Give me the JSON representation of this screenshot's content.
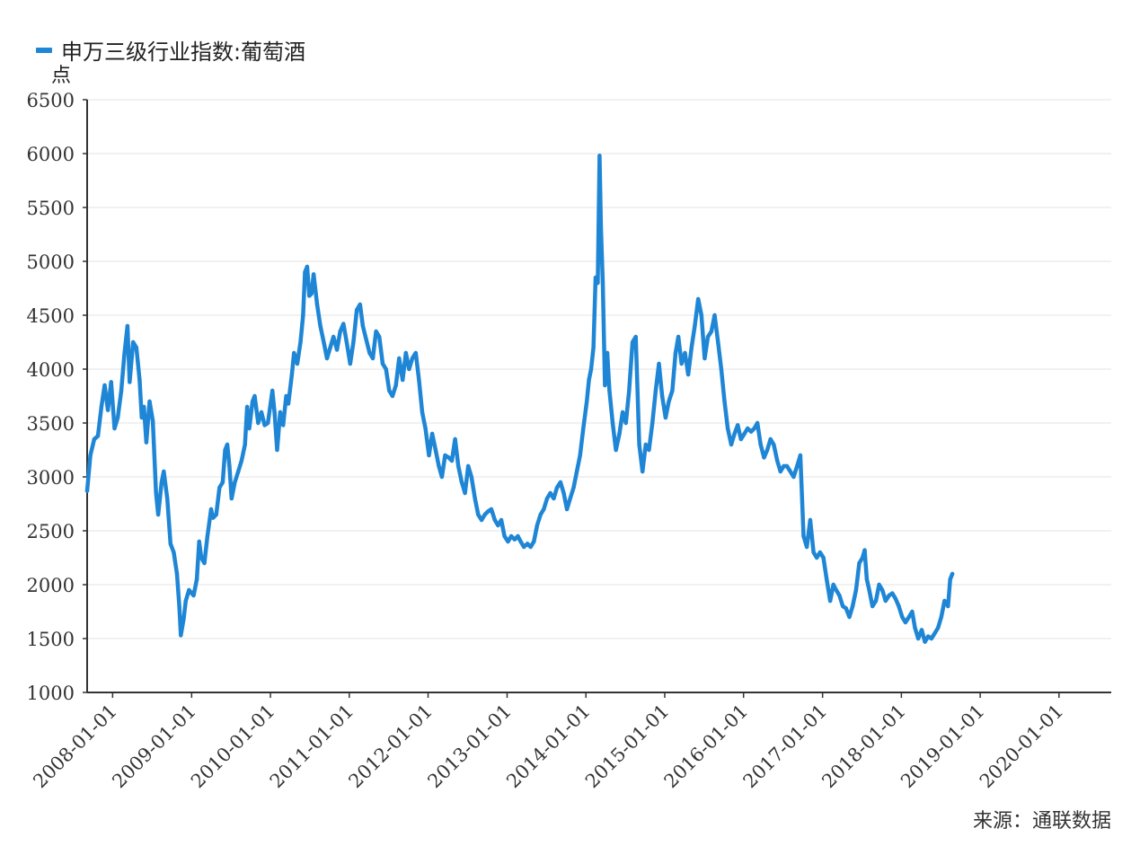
{
  "legend": {
    "series_name": "申万三级行业指数:葡萄酒",
    "color": "#1f86d6"
  },
  "unit": "点",
  "source": "来源：通联数据",
  "chart_data": {
    "type": "line",
    "ylim": [
      1000,
      6500
    ],
    "yticks": [
      1000,
      1500,
      2000,
      2500,
      3000,
      3500,
      4000,
      4500,
      5000,
      5500,
      6000,
      6500
    ],
    "xticks": [
      "2008-01-01",
      "2009-01-01",
      "2010-01-01",
      "2011-01-01",
      "2012-01-01",
      "2013-01-01",
      "2014-01-01",
      "2015-01-01",
      "2016-01-01",
      "2017-01-01",
      "2018-01-01",
      "2019-01-01",
      "2020-01-01"
    ],
    "x_range": [
      "2007-09-05",
      "2020-08-30"
    ],
    "grid": true,
    "legend_position": "top-left",
    "series": [
      {
        "name": "申万三级行业指数:葡萄酒",
        "color": "#1f86d6",
        "points": [
          [
            "2007-09-05",
            2870
          ],
          [
            "2007-09-20",
            3200
          ],
          [
            "2007-10-08",
            3350
          ],
          [
            "2007-10-25",
            3380
          ],
          [
            "2007-11-10",
            3650
          ],
          [
            "2007-11-25",
            3850
          ],
          [
            "2007-12-10",
            3620
          ],
          [
            "2007-12-25",
            3880
          ],
          [
            "2008-01-10",
            3450
          ],
          [
            "2008-01-25",
            3550
          ],
          [
            "2008-02-10",
            3800
          ],
          [
            "2008-02-25",
            4150
          ],
          [
            "2008-03-10",
            4400
          ],
          [
            "2008-03-20",
            3880
          ],
          [
            "2008-04-05",
            4250
          ],
          [
            "2008-04-20",
            4200
          ],
          [
            "2008-05-05",
            3900
          ],
          [
            "2008-05-15",
            3550
          ],
          [
            "2008-05-25",
            3650
          ],
          [
            "2008-06-05",
            3320
          ],
          [
            "2008-06-20",
            3700
          ],
          [
            "2008-07-05",
            3520
          ],
          [
            "2008-07-20",
            2850
          ],
          [
            "2008-07-30",
            2650
          ],
          [
            "2008-08-15",
            2950
          ],
          [
            "2008-08-25",
            3050
          ],
          [
            "2008-09-10",
            2800
          ],
          [
            "2008-09-25",
            2380
          ],
          [
            "2008-10-10",
            2300
          ],
          [
            "2008-10-25",
            2100
          ],
          [
            "2008-11-05",
            1800
          ],
          [
            "2008-11-12",
            1530
          ],
          [
            "2008-11-25",
            1680
          ],
          [
            "2008-12-05",
            1850
          ],
          [
            "2008-12-20",
            1950
          ],
          [
            "2009-01-10",
            1900
          ],
          [
            "2009-01-25",
            2050
          ],
          [
            "2009-02-05",
            2400
          ],
          [
            "2009-02-15",
            2250
          ],
          [
            "2009-03-01",
            2200
          ],
          [
            "2009-03-15",
            2450
          ],
          [
            "2009-04-01",
            2700
          ],
          [
            "2009-04-10",
            2620
          ],
          [
            "2009-04-25",
            2650
          ],
          [
            "2009-05-10",
            2900
          ],
          [
            "2009-05-25",
            2950
          ],
          [
            "2009-06-05",
            3250
          ],
          [
            "2009-06-15",
            3300
          ],
          [
            "2009-06-25",
            3100
          ],
          [
            "2009-07-05",
            2800
          ],
          [
            "2009-07-20",
            2950
          ],
          [
            "2009-08-05",
            3050
          ],
          [
            "2009-08-20",
            3150
          ],
          [
            "2009-09-05",
            3300
          ],
          [
            "2009-09-15",
            3650
          ],
          [
            "2009-09-25",
            3450
          ],
          [
            "2009-10-10",
            3700
          ],
          [
            "2009-10-20",
            3750
          ],
          [
            "2009-11-05",
            3500
          ],
          [
            "2009-11-20",
            3600
          ],
          [
            "2009-12-05",
            3480
          ],
          [
            "2009-12-20",
            3500
          ],
          [
            "2010-01-10",
            3800
          ],
          [
            "2010-01-20",
            3600
          ],
          [
            "2010-02-01",
            3250
          ],
          [
            "2010-02-15",
            3600
          ],
          [
            "2010-03-01",
            3480
          ],
          [
            "2010-03-15",
            3750
          ],
          [
            "2010-03-25",
            3680
          ],
          [
            "2010-04-10",
            3950
          ],
          [
            "2010-04-20",
            4150
          ],
          [
            "2010-05-05",
            4050
          ],
          [
            "2010-05-20",
            4250
          ],
          [
            "2010-06-01",
            4500
          ],
          [
            "2010-06-10",
            4900
          ],
          [
            "2010-06-20",
            4950
          ],
          [
            "2010-06-30",
            4680
          ],
          [
            "2010-07-10",
            4700
          ],
          [
            "2010-07-20",
            4880
          ],
          [
            "2010-08-05",
            4600
          ],
          [
            "2010-08-20",
            4400
          ],
          [
            "2010-09-05",
            4250
          ],
          [
            "2010-09-20",
            4100
          ],
          [
            "2010-10-05",
            4200
          ],
          [
            "2010-10-20",
            4300
          ],
          [
            "2010-11-05",
            4180
          ],
          [
            "2010-11-20",
            4350
          ],
          [
            "2010-12-05",
            4420
          ],
          [
            "2010-12-20",
            4250
          ],
          [
            "2011-01-05",
            4050
          ],
          [
            "2011-01-20",
            4250
          ],
          [
            "2011-02-05",
            4550
          ],
          [
            "2011-02-20",
            4600
          ],
          [
            "2011-03-05",
            4400
          ],
          [
            "2011-03-20",
            4280
          ],
          [
            "2011-04-05",
            4150
          ],
          [
            "2011-04-20",
            4100
          ],
          [
            "2011-05-05",
            4350
          ],
          [
            "2011-05-20",
            4300
          ],
          [
            "2011-06-05",
            4050
          ],
          [
            "2011-06-20",
            4000
          ],
          [
            "2011-07-05",
            3800
          ],
          [
            "2011-07-20",
            3750
          ],
          [
            "2011-08-05",
            3850
          ],
          [
            "2011-08-20",
            4100
          ],
          [
            "2011-09-05",
            3900
          ],
          [
            "2011-09-20",
            4150
          ],
          [
            "2011-10-05",
            4000
          ],
          [
            "2011-10-20",
            4100
          ],
          [
            "2011-11-05",
            4150
          ],
          [
            "2011-11-20",
            3900
          ],
          [
            "2011-12-05",
            3600
          ],
          [
            "2011-12-20",
            3450
          ],
          [
            "2012-01-05",
            3200
          ],
          [
            "2012-01-20",
            3400
          ],
          [
            "2012-02-05",
            3250
          ],
          [
            "2012-02-20",
            3100
          ],
          [
            "2012-03-05",
            3000
          ],
          [
            "2012-03-20",
            3200
          ],
          [
            "2012-04-05",
            3180
          ],
          [
            "2012-04-20",
            3150
          ],
          [
            "2012-05-05",
            3350
          ],
          [
            "2012-05-20",
            3100
          ],
          [
            "2012-06-05",
            2950
          ],
          [
            "2012-06-20",
            2850
          ],
          [
            "2012-07-05",
            3100
          ],
          [
            "2012-07-20",
            3000
          ],
          [
            "2012-08-05",
            2800
          ],
          [
            "2012-08-20",
            2650
          ],
          [
            "2012-09-05",
            2600
          ],
          [
            "2012-09-20",
            2650
          ],
          [
            "2012-10-05",
            2680
          ],
          [
            "2012-10-20",
            2700
          ],
          [
            "2012-11-05",
            2600
          ],
          [
            "2012-11-20",
            2550
          ],
          [
            "2012-12-05",
            2600
          ],
          [
            "2012-12-20",
            2450
          ],
          [
            "2013-01-05",
            2400
          ],
          [
            "2013-01-20",
            2450
          ],
          [
            "2013-02-05",
            2420
          ],
          [
            "2013-02-20",
            2450
          ],
          [
            "2013-03-05",
            2400
          ],
          [
            "2013-03-20",
            2350
          ],
          [
            "2013-04-05",
            2380
          ],
          [
            "2013-04-20",
            2350
          ],
          [
            "2013-05-05",
            2400
          ],
          [
            "2013-05-20",
            2550
          ],
          [
            "2013-06-05",
            2650
          ],
          [
            "2013-06-20",
            2700
          ],
          [
            "2013-07-05",
            2800
          ],
          [
            "2013-07-20",
            2850
          ],
          [
            "2013-08-05",
            2800
          ],
          [
            "2013-08-20",
            2900
          ],
          [
            "2013-09-05",
            2950
          ],
          [
            "2013-09-20",
            2850
          ],
          [
            "2013-10-05",
            2700
          ],
          [
            "2013-10-20",
            2800
          ],
          [
            "2013-11-05",
            2900
          ],
          [
            "2013-11-20",
            3050
          ],
          [
            "2013-12-05",
            3200
          ],
          [
            "2013-12-20",
            3450
          ],
          [
            "2014-01-05",
            3700
          ],
          [
            "2014-01-15",
            3900
          ],
          [
            "2014-01-25",
            4000
          ],
          [
            "2014-02-05",
            4200
          ],
          [
            "2014-02-15",
            4850
          ],
          [
            "2014-02-25",
            4800
          ],
          [
            "2014-03-05",
            5980
          ],
          [
            "2014-03-12",
            5300
          ],
          [
            "2014-03-20",
            4800
          ],
          [
            "2014-03-30",
            3850
          ],
          [
            "2014-04-10",
            4150
          ],
          [
            "2014-04-20",
            3800
          ],
          [
            "2014-05-05",
            3500
          ],
          [
            "2014-05-20",
            3250
          ],
          [
            "2014-06-05",
            3400
          ],
          [
            "2014-06-20",
            3600
          ],
          [
            "2014-07-05",
            3500
          ],
          [
            "2014-07-20",
            3800
          ],
          [
            "2014-08-05",
            4250
          ],
          [
            "2014-08-20",
            4300
          ],
          [
            "2014-09-05",
            3300
          ],
          [
            "2014-09-20",
            3050
          ],
          [
            "2014-10-05",
            3300
          ],
          [
            "2014-10-20",
            3250
          ],
          [
            "2014-11-05",
            3500
          ],
          [
            "2014-11-20",
            3800
          ],
          [
            "2014-12-05",
            4050
          ],
          [
            "2014-12-20",
            3750
          ],
          [
            "2015-01-05",
            3550
          ],
          [
            "2015-01-20",
            3700
          ],
          [
            "2015-02-05",
            3800
          ],
          [
            "2015-02-20",
            4150
          ],
          [
            "2015-03-05",
            4300
          ],
          [
            "2015-03-20",
            4050
          ],
          [
            "2015-04-05",
            4150
          ],
          [
            "2015-04-20",
            3950
          ],
          [
            "2015-05-05",
            4200
          ],
          [
            "2015-05-20",
            4400
          ],
          [
            "2015-06-05",
            4650
          ],
          [
            "2015-06-20",
            4500
          ],
          [
            "2015-07-05",
            4100
          ],
          [
            "2015-07-20",
            4300
          ],
          [
            "2015-08-05",
            4350
          ],
          [
            "2015-08-20",
            4500
          ],
          [
            "2015-09-05",
            4250
          ],
          [
            "2015-09-20",
            4000
          ],
          [
            "2015-10-05",
            3700
          ],
          [
            "2015-10-20",
            3450
          ],
          [
            "2015-11-05",
            3300
          ],
          [
            "2015-11-20",
            3400
          ],
          [
            "2015-12-05",
            3480
          ],
          [
            "2015-12-20",
            3350
          ],
          [
            "2016-01-05",
            3400
          ],
          [
            "2016-01-20",
            3450
          ],
          [
            "2016-02-05",
            3420
          ],
          [
            "2016-02-20",
            3450
          ],
          [
            "2016-03-05",
            3500
          ],
          [
            "2016-03-20",
            3300
          ],
          [
            "2016-04-05",
            3180
          ],
          [
            "2016-04-20",
            3250
          ],
          [
            "2016-05-05",
            3350
          ],
          [
            "2016-05-20",
            3300
          ],
          [
            "2016-06-05",
            3150
          ],
          [
            "2016-06-20",
            3050
          ],
          [
            "2016-07-05",
            3100
          ],
          [
            "2016-07-20",
            3100
          ],
          [
            "2016-08-05",
            3050
          ],
          [
            "2016-08-20",
            3000
          ],
          [
            "2016-09-05",
            3100
          ],
          [
            "2016-09-20",
            3200
          ],
          [
            "2016-10-05",
            2450
          ],
          [
            "2016-10-20",
            2350
          ],
          [
            "2016-11-05",
            2600
          ],
          [
            "2016-11-20",
            2300
          ],
          [
            "2016-12-05",
            2250
          ],
          [
            "2016-12-20",
            2300
          ],
          [
            "2017-01-05",
            2250
          ],
          [
            "2017-01-20",
            2050
          ],
          [
            "2017-02-05",
            1850
          ],
          [
            "2017-02-20",
            2000
          ],
          [
            "2017-03-05",
            1950
          ],
          [
            "2017-03-20",
            1900
          ],
          [
            "2017-04-05",
            1800
          ],
          [
            "2017-04-20",
            1780
          ],
          [
            "2017-05-05",
            1700
          ],
          [
            "2017-05-20",
            1800
          ],
          [
            "2017-06-05",
            1950
          ],
          [
            "2017-06-20",
            2200
          ],
          [
            "2017-07-05",
            2250
          ],
          [
            "2017-07-15",
            2320
          ],
          [
            "2017-07-25",
            2050
          ],
          [
            "2017-08-05",
            1950
          ],
          [
            "2017-08-20",
            1800
          ],
          [
            "2017-09-05",
            1850
          ],
          [
            "2017-09-20",
            2000
          ],
          [
            "2017-10-05",
            1950
          ],
          [
            "2017-10-20",
            1850
          ],
          [
            "2017-11-05",
            1900
          ],
          [
            "2017-11-20",
            1920
          ],
          [
            "2017-12-05",
            1870
          ],
          [
            "2017-12-20",
            1800
          ],
          [
            "2018-01-05",
            1700
          ],
          [
            "2018-01-20",
            1650
          ],
          [
            "2018-02-05",
            1700
          ],
          [
            "2018-02-20",
            1750
          ],
          [
            "2018-03-05",
            1600
          ],
          [
            "2018-03-20",
            1500
          ],
          [
            "2018-04-05",
            1580
          ],
          [
            "2018-04-20",
            1470
          ],
          [
            "2018-05-05",
            1520
          ],
          [
            "2018-05-20",
            1500
          ],
          [
            "2018-06-05",
            1550
          ],
          [
            "2018-06-20",
            1600
          ],
          [
            "2018-07-05",
            1700
          ],
          [
            "2018-07-20",
            1850
          ],
          [
            "2018-08-05",
            1800
          ],
          [
            "2018-08-15",
            2050
          ],
          [
            "2018-08-25",
            2100
          ]
        ]
      }
    ]
  }
}
